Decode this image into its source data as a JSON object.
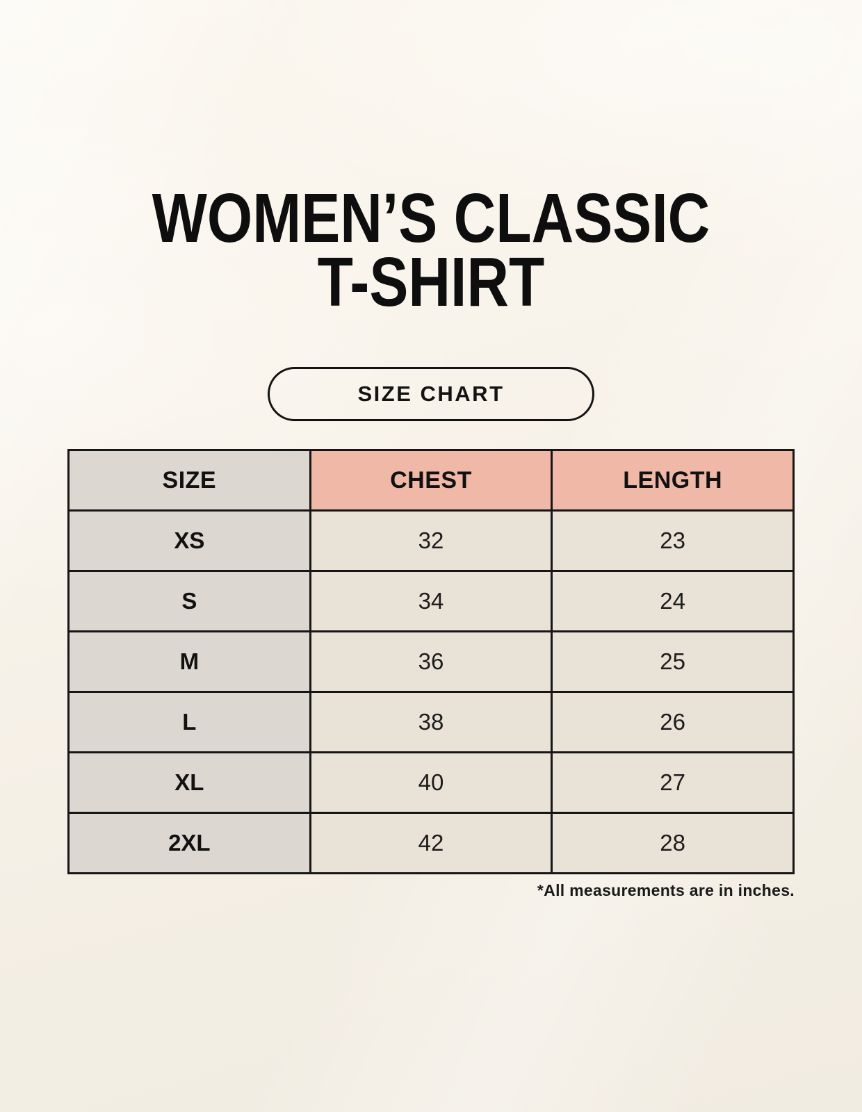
{
  "title": {
    "line1": "WOMEN’S CLASSIC",
    "line2": "T-SHIRT"
  },
  "size_chart_button": {
    "label": "SIZE CHART"
  },
  "table": {
    "headers": [
      "SIZE",
      "CHEST",
      "LENGTH"
    ],
    "rows": [
      {
        "size": "XS",
        "chest": "32",
        "length": "23"
      },
      {
        "size": "S",
        "chest": "34",
        "length": "24"
      },
      {
        "size": "M",
        "chest": "36",
        "length": "25"
      },
      {
        "size": "L",
        "chest": "38",
        "length": "26"
      },
      {
        "size": "XL",
        "chest": "40",
        "length": "27"
      },
      {
        "size": "2XL",
        "chest": "42",
        "length": "28"
      }
    ],
    "footnote": "*All measurements are in inches."
  },
  "chart_data": {
    "type": "table",
    "title": "WOMEN’S CLASSIC T-SHIRT — SIZE CHART",
    "columns": [
      "SIZE",
      "CHEST",
      "LENGTH"
    ],
    "rows": [
      [
        "XS",
        32,
        23
      ],
      [
        "S",
        34,
        24
      ],
      [
        "M",
        36,
        25
      ],
      [
        "L",
        38,
        26
      ],
      [
        "XL",
        40,
        27
      ],
      [
        "2XL",
        42,
        28
      ]
    ],
    "units": "inches"
  },
  "colors": {
    "background": "#f7f2e9",
    "size_column_bg": "#ddd7d1",
    "measure_header_bg": "#f0b9a7",
    "data_cell_bg": "#e9e2d7",
    "border": "#161616",
    "text": "#111111"
  }
}
